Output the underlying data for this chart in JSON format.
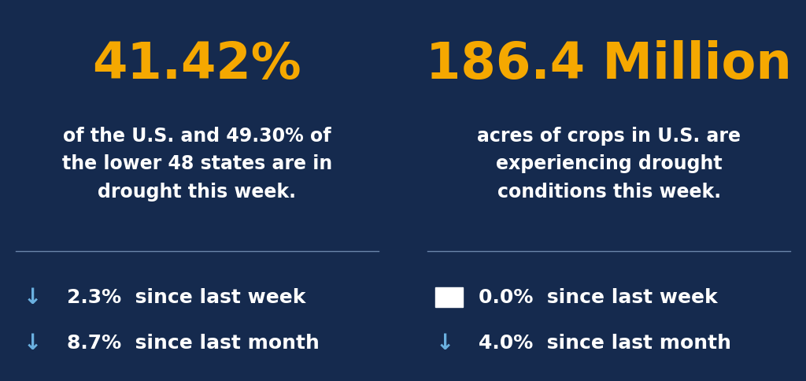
{
  "bg_color": "#152a4e",
  "divider_color": "#6a85aa",
  "white_color": "#ffffff",
  "gold_color": "#f5a800",
  "blue_arrow_color": "#6ab0e0",
  "left_big_text": "41.42%",
  "left_sub_text": "of the U.S. and 49.30% of\nthe lower 48 states are in\ndrought this week.",
  "left_stat1_arrow": "↓",
  "left_stat1_text": "2.3%  since last week",
  "left_stat2_arrow": "↓",
  "left_stat2_text": "8.7%  since last month",
  "right_big_text": "186.4 Million",
  "right_sub_text": "acres of crops in U.S. are\nexperiencing drought\nconditions this week.",
  "right_stat1_symbol": "—",
  "right_stat1_text": "0.0%  since last week",
  "right_stat2_arrow": "↓",
  "right_stat2_text": "4.0%  since last month",
  "big_fontsize": 46,
  "sub_fontsize": 17,
  "stat_fontsize": 18,
  "arrow_fontsize": 20
}
